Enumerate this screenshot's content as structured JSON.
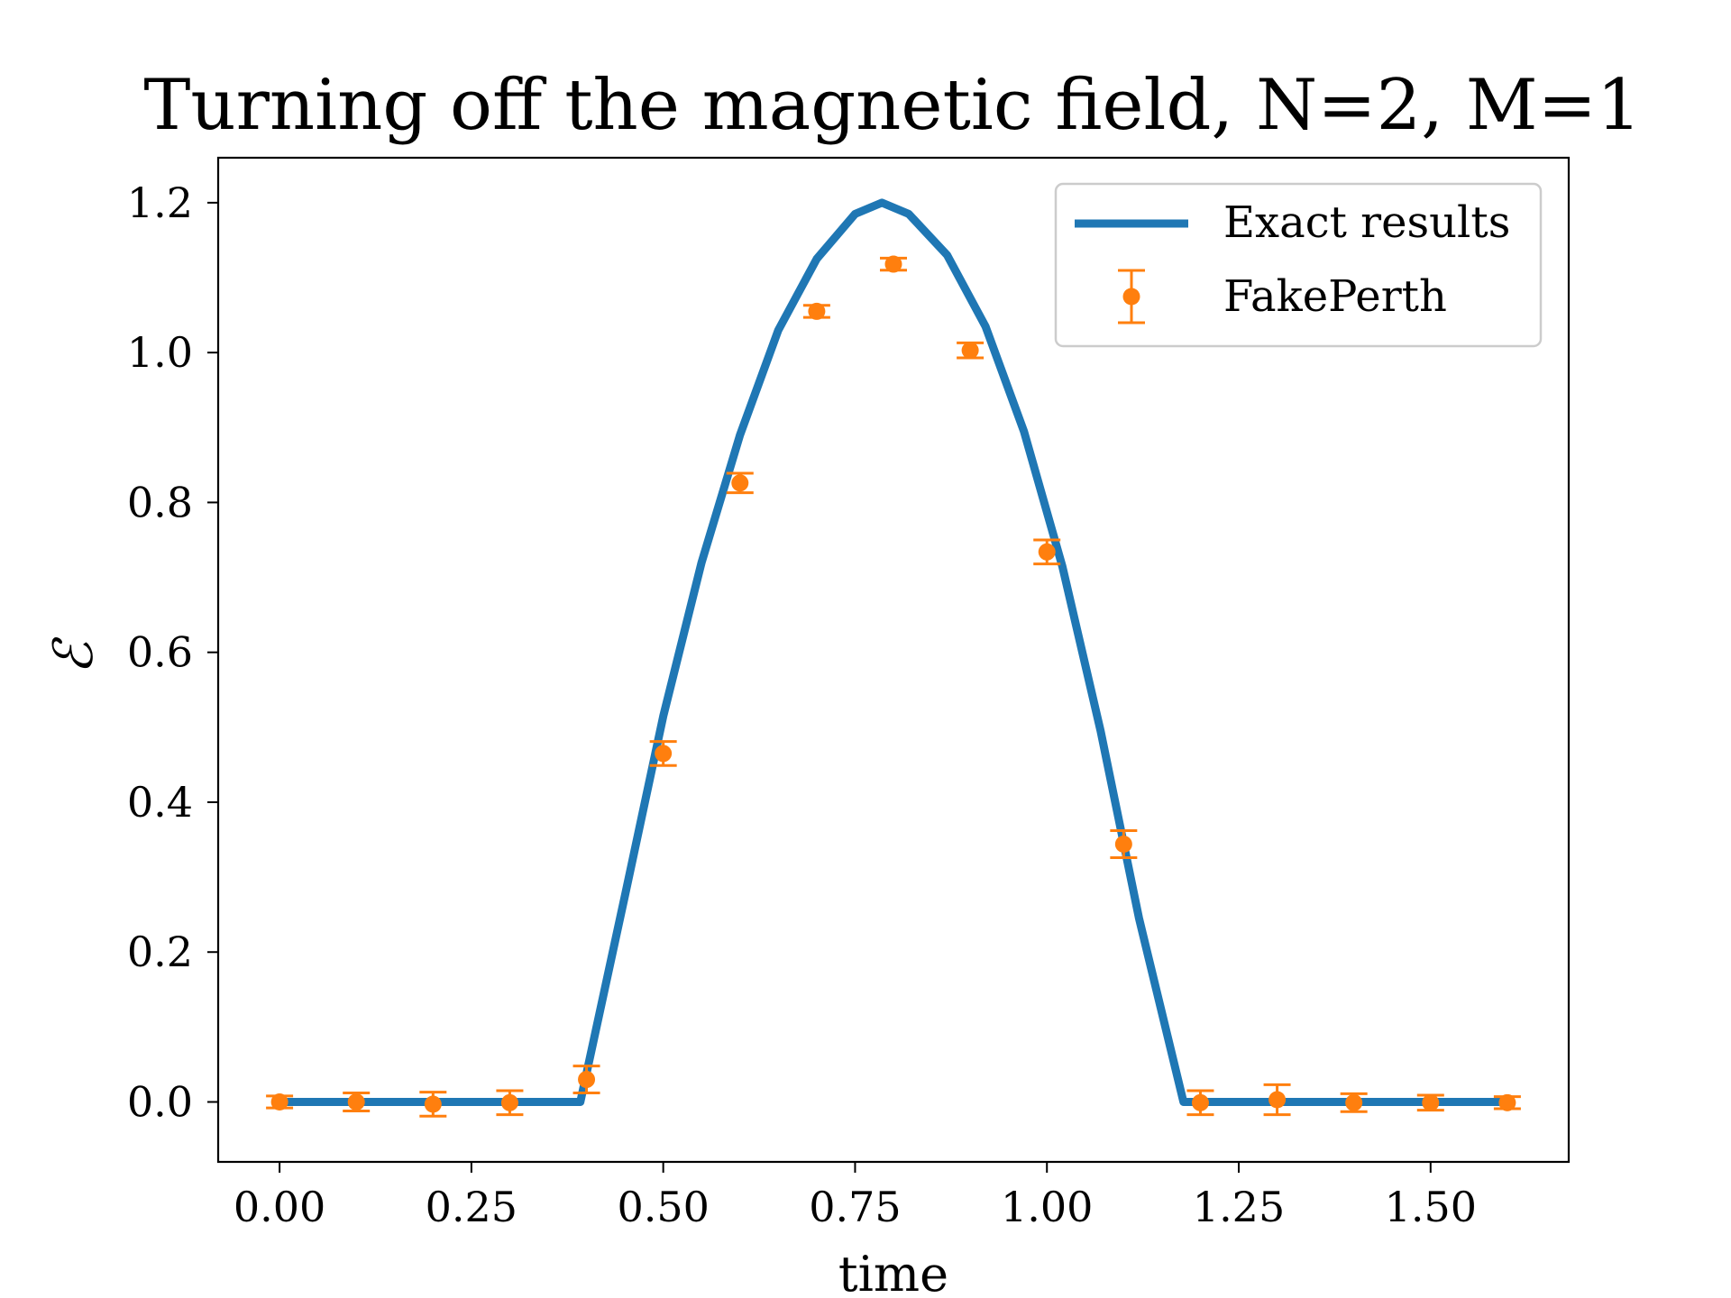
{
  "chart_data": {
    "type": "line",
    "title": "Turning off the magnetic field, N=2, M=1",
    "xlabel": "time",
    "ylabel": "ℰ",
    "xlim": [
      -0.08,
      1.68
    ],
    "ylim": [
      -0.08,
      1.26
    ],
    "x_ticks": [
      "0.00",
      "0.25",
      "0.50",
      "0.75",
      "1.00",
      "1.25",
      "1.50"
    ],
    "y_ticks": [
      "0.0",
      "0.2",
      "0.4",
      "0.6",
      "0.8",
      "1.0",
      "1.2"
    ],
    "legend": {
      "position": "top-right",
      "entries": [
        "Exact results",
        "FakePerth"
      ]
    },
    "colors": {
      "exact": "#1f77b4",
      "fake": "#ff7f0e"
    },
    "series": [
      {
        "name": "Exact results",
        "style": "line",
        "x": [
          0.0,
          0.392,
          0.45,
          0.5,
          0.55,
          0.6,
          0.65,
          0.7,
          0.75,
          0.785,
          0.82,
          0.87,
          0.92,
          0.97,
          1.02,
          1.07,
          1.12,
          1.178,
          1.6
        ],
        "y": [
          0.0,
          0.0,
          0.275,
          0.515,
          0.72,
          0.89,
          1.03,
          1.125,
          1.185,
          1.2,
          1.185,
          1.13,
          1.035,
          0.895,
          0.715,
          0.495,
          0.245,
          0.0,
          0.0
        ]
      },
      {
        "name": "FakePerth",
        "style": "errorbar",
        "x": [
          0.0,
          0.1,
          0.2,
          0.3,
          0.4,
          0.5,
          0.6,
          0.7,
          0.8,
          0.9,
          1.0,
          1.1,
          1.2,
          1.3,
          1.4,
          1.5,
          1.6
        ],
        "y": [
          0.0,
          0.0,
          -0.003,
          -0.001,
          0.03,
          0.465,
          0.826,
          1.055,
          1.118,
          1.003,
          0.734,
          0.344,
          -0.001,
          0.003,
          -0.001,
          -0.001,
          -0.001
        ],
        "err": [
          0.008,
          0.012,
          0.016,
          0.016,
          0.018,
          0.016,
          0.013,
          0.008,
          0.008,
          0.01,
          0.016,
          0.018,
          0.016,
          0.02,
          0.012,
          0.01,
          0.008
        ]
      }
    ]
  }
}
